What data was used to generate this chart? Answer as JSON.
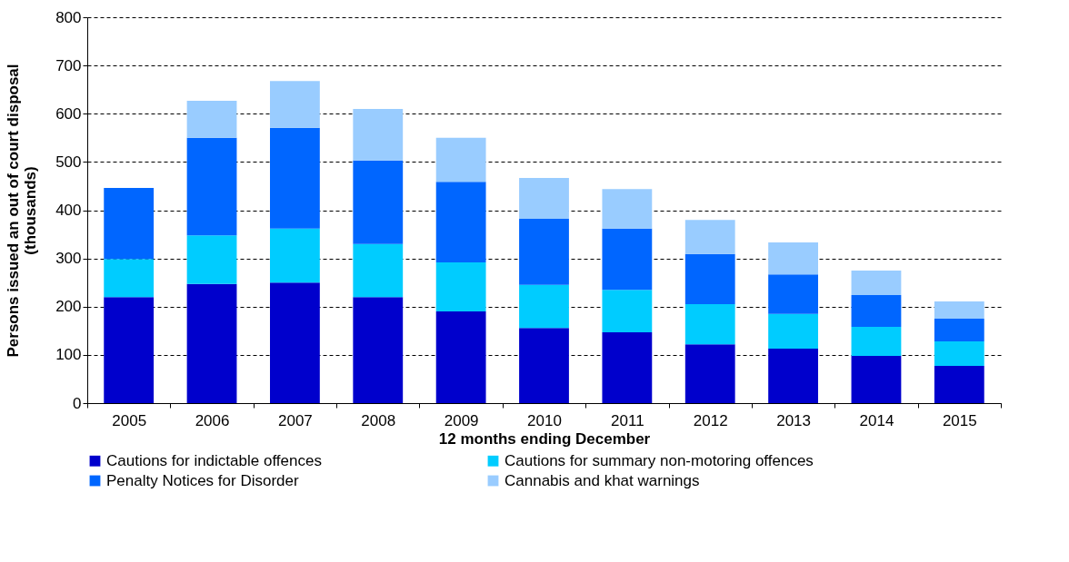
{
  "chart_data": {
    "type": "bar",
    "stacked": true,
    "xlabel": "12 months ending December",
    "ylabel": "Persons issued an out of court disposal (thousands)",
    "categories": [
      "2005",
      "2006",
      "2007",
      "2008",
      "2009",
      "2010",
      "2011",
      "2012",
      "2013",
      "2014",
      "2015"
    ],
    "series": [
      {
        "name": "Cautions for indictable offences",
        "color": "#0000cc",
        "values": [
          220,
          247,
          250,
          220,
          190,
          156,
          147,
          122,
          113,
          98,
          77
        ]
      },
      {
        "name": "Cautions for summary non-motoring offences",
        "color": "#00ccff",
        "values": [
          79,
          101,
          112,
          110,
          102,
          89,
          88,
          83,
          72,
          60,
          51
        ]
      },
      {
        "name": "Penalty Notices for Disorder",
        "color": "#0066ff",
        "values": [
          147,
          202,
          209,
          173,
          167,
          137,
          127,
          104,
          82,
          66,
          47
        ]
      },
      {
        "name": "Cannabis and khat warnings",
        "color": "#99ccff",
        "values": [
          null,
          77,
          97,
          107,
          91,
          85,
          82,
          71,
          66,
          51,
          36
        ]
      }
    ],
    "ylim": [
      0,
      800
    ],
    "yticks": [
      0,
      100,
      200,
      300,
      400,
      500,
      600,
      700,
      800
    ],
    "grid": "y",
    "legend": "bottom"
  }
}
